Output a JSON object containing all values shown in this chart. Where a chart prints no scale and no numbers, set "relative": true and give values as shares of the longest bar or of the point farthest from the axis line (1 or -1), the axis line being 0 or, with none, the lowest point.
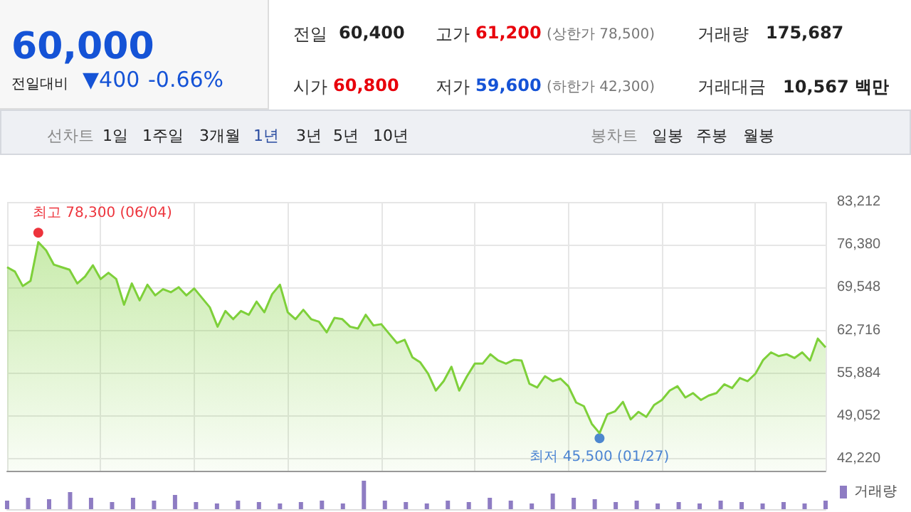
{
  "chart_data": [
    {
      "type": "other",
      "annotations": [
        "60,000",
        "전일대비",
        "▼400",
        "-0.66%",
        "전일",
        "60,400",
        "고가",
        "61,200",
        "(상한가 78,500)",
        "거래량",
        "175,687",
        "시가",
        "60,800",
        "저가",
        "59,600",
        "(하한가 42,300)",
        "거래대금",
        "10,567 백만",
        "선차트",
        "1일",
        "1주일",
        "3개월",
        "1년",
        "3년",
        "5년",
        "10년",
        "봉차트",
        "일봉",
        "주봉",
        "월봉"
      ]
    },
    {
      "type": "area",
      "categories": [
        null,
        null,
        null,
        null,
        null,
        null,
        null,
        null,
        null,
        null,
        null,
        null,
        null,
        null,
        null,
        null,
        null,
        null,
        null,
        null,
        null,
        null,
        null,
        null,
        null,
        null,
        null,
        null,
        null,
        null,
        null,
        null,
        null,
        null,
        null,
        null,
        null,
        null,
        null,
        null,
        null,
        null,
        null,
        null,
        null,
        null,
        null,
        null,
        null,
        null,
        null,
        null,
        null,
        null,
        null,
        null,
        null,
        null,
        null,
        null,
        null,
        null,
        null,
        null,
        null,
        null,
        null,
        null,
        null,
        null,
        null,
        null,
        null,
        null,
        null,
        null,
        null,
        null,
        null,
        null,
        null,
        null,
        null,
        null,
        null,
        null,
        null,
        null,
        null,
        null,
        null,
        null,
        null,
        null,
        null,
        null,
        null,
        null,
        null,
        null,
        null,
        null,
        null,
        null,
        null,
        null
      ],
      "series": [
        {
          "type": "area",
          "color": "#7ed03a",
          "values": [
            72800,
            72100,
            69800,
            70600,
            76800,
            75500,
            73200,
            72800,
            72400,
            70200,
            71300,
            73100,
            70900,
            71900,
            70900,
            66800,
            70200,
            67500,
            70000,
            68300,
            69300,
            68800,
            69600,
            68300,
            69400,
            67900,
            66400,
            63300,
            65800,
            64500,
            65800,
            65200,
            67300,
            65600,
            68500,
            70000,
            65600,
            64500,
            66000,
            64500,
            64100,
            62400,
            64700,
            64500,
            63300,
            63000,
            65200,
            63500,
            63700,
            62200,
            60700,
            61200,
            58400,
            57600,
            55800,
            53100,
            54600,
            56900,
            53100,
            55400,
            57400,
            57400,
            58900,
            57900,
            57400,
            58000,
            57900,
            54200,
            53600,
            55400,
            54600,
            55000,
            53800,
            51200,
            50600,
            47800,
            46300,
            49300,
            49800,
            51300,
            48500,
            49700,
            48900,
            50800,
            51600,
            53100,
            53800,
            52000,
            52700,
            51600,
            52300,
            52700,
            54100,
            53500,
            55100,
            54600,
            55800,
            58000,
            59200,
            58600,
            58900,
            58300,
            59200,
            57900,
            61400,
            60000
          ]
        },
        {
          "type": "scatter",
          "color": "#e8000b",
          "values": [
            null,
            null,
            null,
            null,
            78300,
            null,
            null,
            null,
            null,
            null,
            null,
            null,
            null,
            null,
            null,
            null,
            null,
            null,
            null,
            null,
            null,
            null,
            null,
            null,
            null,
            null,
            null,
            null,
            null,
            null,
            null,
            null,
            null,
            null,
            null,
            null,
            null,
            null,
            null,
            null,
            null,
            null,
            null,
            null,
            null,
            null,
            null,
            null,
            null,
            null,
            null,
            null,
            null,
            null,
            null,
            null,
            null,
            null,
            null,
            null,
            null,
            null,
            null,
            null,
            null,
            null,
            null,
            null,
            null,
            null,
            null,
            null,
            null,
            null,
            null,
            null,
            null,
            null,
            null,
            null,
            null,
            null,
            null,
            null,
            null,
            null,
            null,
            null,
            null,
            null,
            null,
            null,
            null,
            null,
            null,
            null,
            null,
            null,
            null,
            null,
            null,
            null,
            null,
            null,
            null,
            null
          ],
          "value_labels": [
            null,
            null,
            null,
            null,
            "최고 78,300 (06/04)",
            null,
            null,
            null,
            null,
            null,
            null,
            null,
            null,
            null,
            null,
            null,
            null,
            null,
            null,
            null,
            null,
            null,
            null,
            null,
            null,
            null,
            null,
            null,
            null,
            null,
            null,
            null,
            null,
            null,
            null,
            null,
            null,
            null,
            null,
            null,
            null,
            null,
            null,
            null,
            null,
            null,
            null,
            null,
            null,
            null,
            null,
            null,
            null,
            null,
            null,
            null,
            null,
            null,
            null,
            null,
            null,
            null,
            null,
            null,
            null,
            null,
            null,
            null,
            null,
            null,
            null,
            null,
            null,
            null,
            null,
            null,
            null,
            null,
            null,
            null,
            null,
            null,
            null,
            null,
            null,
            null,
            null,
            null,
            null,
            null,
            null,
            null,
            null,
            null,
            null,
            null,
            null,
            null,
            null,
            null,
            null,
            null,
            null,
            null,
            null,
            null
          ]
        },
        {
          "type": "scatter",
          "color": "#1a5fd6",
          "values": [
            null,
            null,
            null,
            null,
            null,
            null,
            null,
            null,
            null,
            null,
            null,
            null,
            null,
            null,
            null,
            null,
            null,
            null,
            null,
            null,
            null,
            null,
            null,
            null,
            null,
            null,
            null,
            null,
            null,
            null,
            null,
            null,
            null,
            null,
            null,
            null,
            null,
            null,
            null,
            null,
            null,
            null,
            null,
            null,
            null,
            null,
            null,
            null,
            null,
            null,
            null,
            null,
            null,
            null,
            null,
            null,
            null,
            null,
            null,
            null,
            null,
            null,
            null,
            null,
            null,
            null,
            null,
            null,
            null,
            null,
            null,
            null,
            null,
            null,
            null,
            null,
            45500,
            null,
            null,
            null,
            null,
            null,
            null,
            null,
            null,
            null,
            null,
            null,
            null,
            null,
            null,
            null,
            null,
            null,
            null,
            null,
            null,
            null,
            null,
            null,
            null,
            null,
            null,
            null,
            null,
            null
          ],
          "value_labels": [
            null,
            null,
            null,
            null,
            null,
            null,
            null,
            null,
            null,
            null,
            null,
            null,
            null,
            null,
            null,
            null,
            null,
            null,
            null,
            null,
            null,
            null,
            null,
            null,
            null,
            null,
            null,
            null,
            null,
            null,
            null,
            null,
            null,
            null,
            null,
            null,
            null,
            null,
            null,
            null,
            null,
            null,
            null,
            null,
            null,
            null,
            null,
            null,
            null,
            null,
            null,
            null,
            null,
            null,
            null,
            null,
            null,
            null,
            null,
            null,
            null,
            null,
            null,
            null,
            null,
            null,
            null,
            null,
            null,
            null,
            null,
            null,
            null,
            null,
            null,
            null,
            "최저 45,500 (01/27)",
            null,
            null,
            null,
            null,
            null,
            null,
            null,
            null,
            null,
            null,
            null,
            null,
            null,
            null,
            null,
            null,
            null,
            null,
            null,
            null,
            null,
            null,
            null,
            null,
            null,
            null,
            null,
            null,
            null
          ]
        }
      ],
      "ylim": [
        40300,
        83212
      ],
      "yticks": [
        {
          "value": 42220,
          "label": "42,220"
        },
        {
          "value": 49052,
          "label": "49,052"
        },
        {
          "value": 55884,
          "label": "55,884"
        },
        {
          "value": 62716,
          "label": "62,716"
        },
        {
          "value": 69548,
          "label": "69,548"
        },
        {
          "value": 76380,
          "label": "76,380"
        },
        {
          "value": 83212,
          "label": "83,212"
        }
      ],
      "grid": true
    },
    {
      "type": "bar",
      "relative": true,
      "legend": "top right",
      "categories": [
        null,
        null,
        null,
        null,
        null,
        null,
        null,
        null,
        null,
        null,
        null,
        null,
        null,
        null,
        null,
        null,
        null,
        null,
        null,
        null,
        null,
        null,
        null,
        null,
        null,
        null,
        null,
        null,
        null,
        null,
        null,
        null,
        null,
        null,
        null,
        null,
        null,
        null,
        null,
        null
      ],
      "series": [
        {
          "name": "거래량",
          "color": "#8e7cc3",
          "values": [
            0.3,
            0.4,
            0.35,
            0.6,
            0.4,
            0.25,
            0.4,
            0.3,
            0.5,
            0.25,
            0.2,
            0.3,
            0.25,
            0.2,
            0.25,
            0.3,
            0.2,
            1,
            0.3,
            0.25,
            0.2,
            0.3,
            0.25,
            0.4,
            0.3,
            0.2,
            0.55,
            0.4,
            0.35,
            0.25,
            0.3,
            0.2,
            0.25,
            0.2,
            0.3,
            0.25,
            0.2,
            0.25,
            0.2,
            0.3
          ]
        }
      ]
    }
  ]
}
